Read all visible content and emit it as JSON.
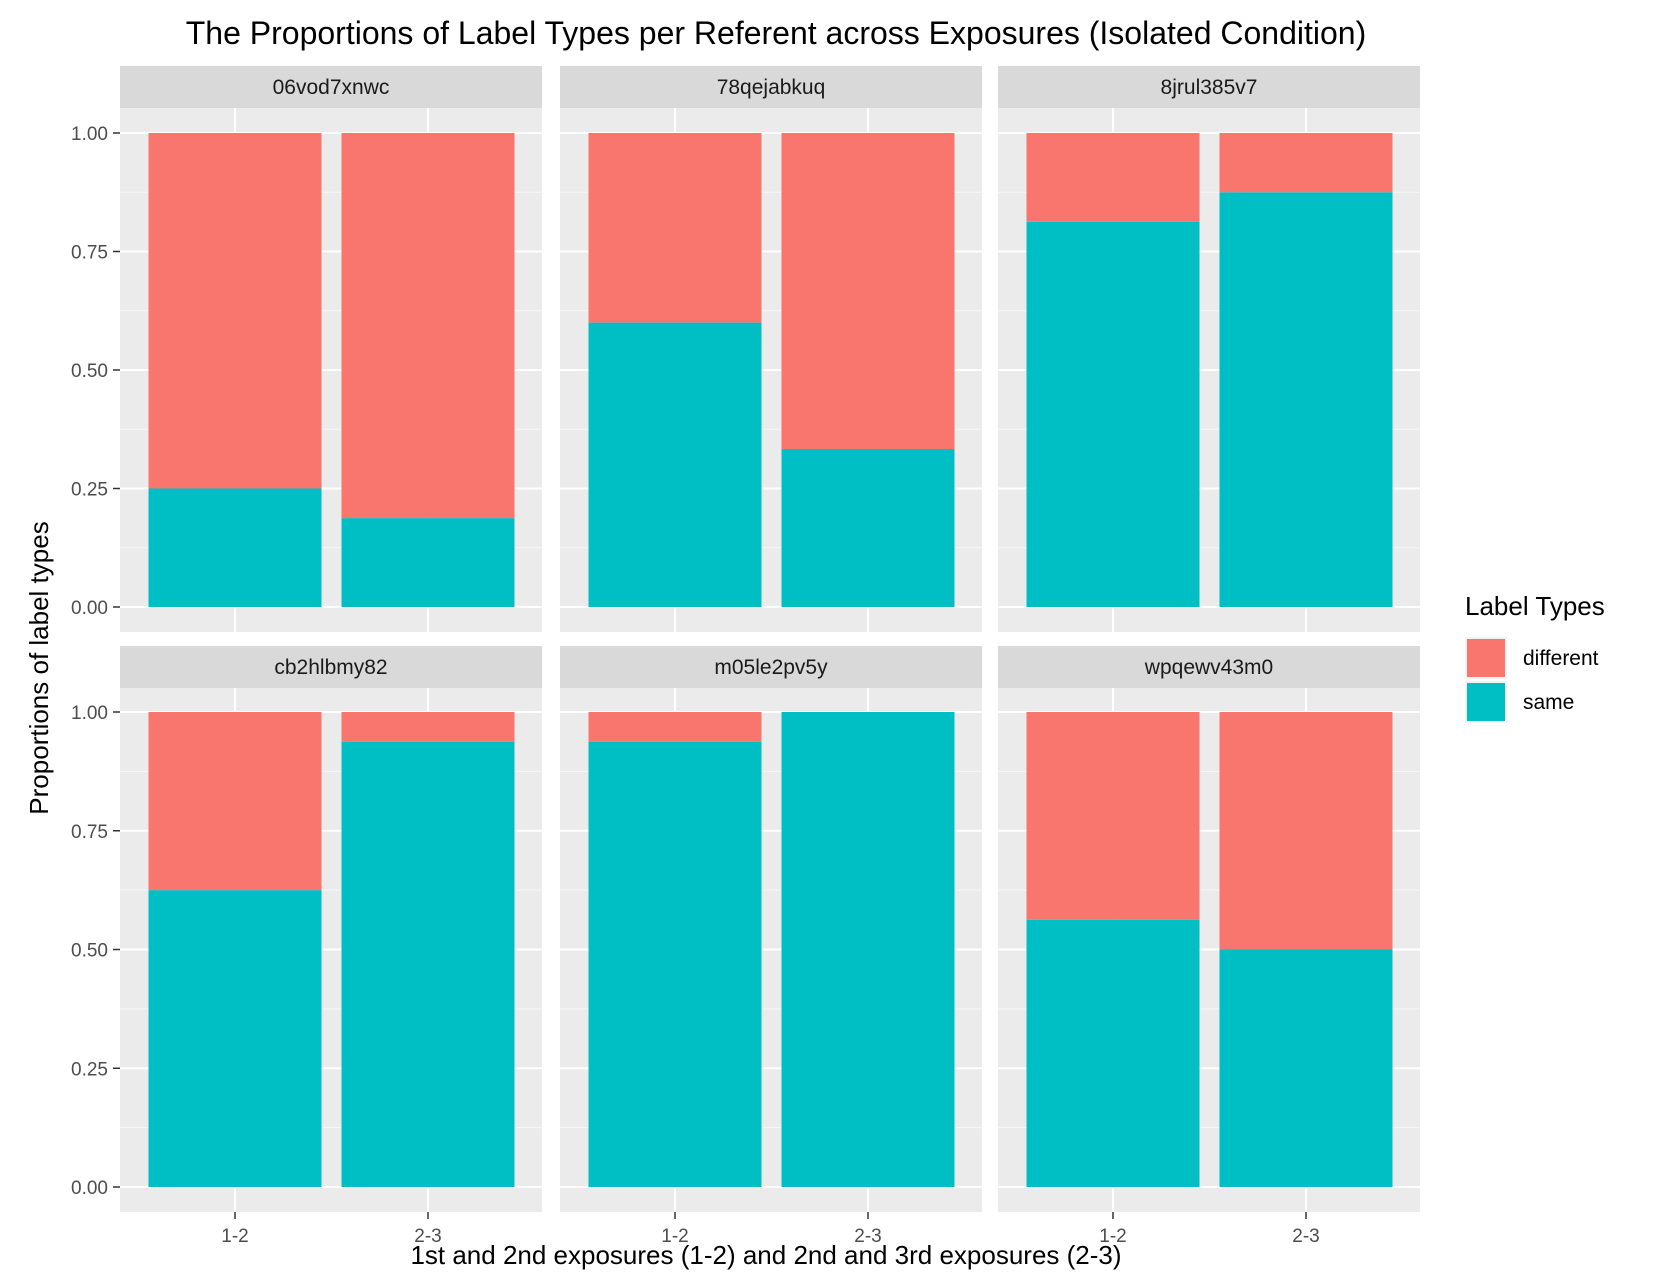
{
  "chart_data": {
    "type": "bar",
    "stacked": true,
    "title": "The Proportions of Label Types per Referent across Exposures (Isolated Condition)",
    "xlabel": "1st and 2nd exposures (1-2) and 2nd and 3rd exposures (2-3)",
    "ylabel": "Proportions of label types",
    "ylim": [
      0,
      1
    ],
    "yticks": [
      "0.00",
      "0.25",
      "0.50",
      "0.75",
      "1.00"
    ],
    "categories": [
      "1-2",
      "2-3"
    ],
    "legend": {
      "title": "Label Types",
      "position": "right",
      "entries": [
        {
          "label": "different",
          "color": "#F8766D"
        },
        {
          "label": "same",
          "color": "#00BFC4"
        }
      ]
    },
    "grid": true,
    "facets": [
      {
        "name": "06vod7xnwc",
        "same": [
          0.25,
          0.1875
        ],
        "different": [
          0.75,
          0.8125
        ]
      },
      {
        "name": "78qejabkuq",
        "same": [
          0.6,
          0.3333
        ],
        "different": [
          0.4,
          0.6667
        ]
      },
      {
        "name": "8jrul385v7",
        "same": [
          0.8125,
          0.875
        ],
        "different": [
          0.1875,
          0.125
        ]
      },
      {
        "name": "cb2hlbmy82",
        "same": [
          0.625,
          0.9375
        ],
        "different": [
          0.375,
          0.0625
        ]
      },
      {
        "name": "m05le2pv5y",
        "same": [
          0.9375,
          1.0
        ],
        "different": [
          0.0625,
          0.0
        ]
      },
      {
        "name": "wpqewv43m0",
        "same": [
          0.5625,
          0.5
        ],
        "different": [
          0.4375,
          0.5
        ]
      }
    ]
  }
}
